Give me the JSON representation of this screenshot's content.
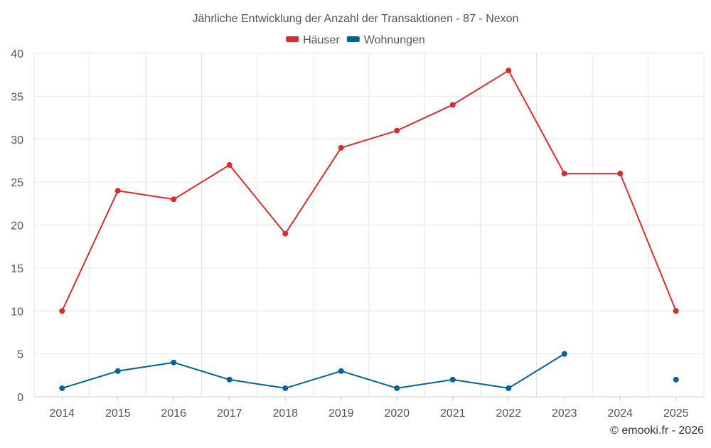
{
  "chart_data": {
    "type": "line",
    "title": "Jährliche Entwicklung der Anzahl der Transaktionen - 87 - Nexon",
    "xlabel": "",
    "ylabel": "",
    "categories": [
      "2014",
      "2015",
      "2016",
      "2017",
      "2018",
      "2019",
      "2020",
      "2021",
      "2022",
      "2023",
      "2024",
      "2025"
    ],
    "ylim": [
      0,
      40
    ],
    "yticks": [
      0,
      5,
      10,
      15,
      20,
      25,
      30,
      35,
      40
    ],
    "grid": true,
    "legend_position": "top-center",
    "series": [
      {
        "name": "Häuser",
        "color": "#d32f2f",
        "values": [
          10,
          24,
          23,
          27,
          19,
          29,
          31,
          34,
          38,
          26,
          26,
          10
        ]
      },
      {
        "name": "Wohnungen",
        "color": "#036199",
        "values": [
          1,
          3,
          4,
          2,
          1,
          3,
          1,
          2,
          1,
          5,
          null,
          2
        ]
      }
    ]
  },
  "credit": "© emooki.fr - 2026"
}
